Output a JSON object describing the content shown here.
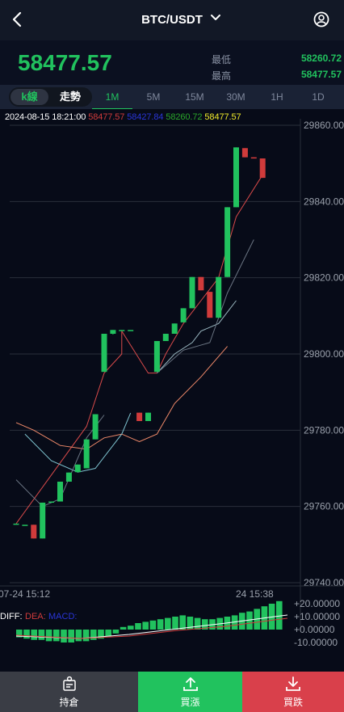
{
  "header": {
    "title": "BTC/USDT"
  },
  "price": {
    "current": "58477.57",
    "low_label": "最低",
    "low_value": "58260.72",
    "high_label": "最高",
    "high_value": "58477.57"
  },
  "tabs": {
    "kline": "k線",
    "trend": "走勢",
    "timeframes": [
      "1M",
      "5M",
      "15M",
      "30M",
      "1H",
      "1D"
    ],
    "active": "1M"
  },
  "ohlc": {
    "datetime": "2024-08-15 18:21:00",
    "v1": "58477.57",
    "v2": "58427.84",
    "v3": "58260.72",
    "v4": "58477.57",
    "c1": "#d03b3b",
    "c2": "#2a36d8",
    "c3": "#2aa62a",
    "c4": "#f2ec2a"
  },
  "colors": {
    "up": "#21c25e",
    "down": "#d03b3b",
    "footer_dark": "#3a3d45",
    "buy": "#21c25e",
    "sell": "#d9404b"
  },
  "chart_data": {
    "type": "candlestick",
    "y_ticks": [
      "29860.00",
      "29840.00",
      "29820.00",
      "29800.00",
      "29780.00",
      "29760.00",
      "29740.00"
    ],
    "x_labels": [
      "07-24 15:12",
      "24 15:38"
    ],
    "candles": [
      {
        "o": 29755.5,
        "h": 29755.5,
        "c": 29755.5,
        "l": 29755.5
      },
      {
        "o": 29755.2,
        "h": 29755.2,
        "c": 29755.2,
        "l": 29755.2
      },
      {
        "o": 29755.2,
        "h": 29755.2,
        "c": 29751.6,
        "l": 29751.6
      },
      {
        "o": 29751.6,
        "h": 29761.0,
        "c": 29761.0,
        "l": 29751.6
      },
      {
        "o": 29761.1,
        "h": 29761.3,
        "c": 29761.3,
        "l": 29761.0
      },
      {
        "o": 29761.3,
        "h": 29766.5,
        "c": 29766.5,
        "l": 29761.3
      },
      {
        "o": 29766.5,
        "h": 29768.9,
        "c": 29768.9,
        "l": 29766.5
      },
      {
        "o": 29769.0,
        "h": 29771.0,
        "c": 29771.0,
        "l": 29769.0
      },
      {
        "o": 29770.0,
        "h": 29777.6,
        "c": 29777.6,
        "l": 29770.0
      },
      {
        "o": 29777.6,
        "h": 29784.2,
        "c": 29784.2,
        "l": 29777.6
      },
      {
        "o": 29795.3,
        "h": 29805.3,
        "c": 29805.3,
        "l": 29795.3
      },
      {
        "o": 29805.3,
        "h": 29806.3,
        "c": 29806.3,
        "l": 29805.1
      },
      {
        "o": 29806.3,
        "h": 29806.3,
        "c": 29806.3,
        "l": 29806.3
      },
      {
        "o": 29806.3,
        "h": 29806.3,
        "c": 29806.3,
        "l": 29806.3
      },
      {
        "o": 29784.6,
        "h": 29784.6,
        "c": 29782.4,
        "l": 29782.4
      },
      {
        "o": 29782.4,
        "h": 29784.6,
        "c": 29784.6,
        "l": 29782.4
      },
      {
        "o": 29795.3,
        "h": 29803.4,
        "c": 29803.4,
        "l": 29795.3
      },
      {
        "o": 29803.4,
        "h": 29805.3,
        "c": 29805.3,
        "l": 29803.4
      },
      {
        "o": 29805.3,
        "h": 29808.0,
        "c": 29808.0,
        "l": 29805.3
      },
      {
        "o": 29808.3,
        "h": 29812.0,
        "c": 29812.0,
        "l": 29808.3
      },
      {
        "o": 29812.0,
        "h": 29820.2,
        "c": 29820.2,
        "l": 29812.0
      },
      {
        "o": 29820.2,
        "h": 29820.2,
        "c": 29816.7,
        "l": 29816.7
      },
      {
        "o": 29816.3,
        "h": 29816.3,
        "c": 29809.5,
        "l": 29809.5
      },
      {
        "o": 29809.5,
        "h": 29820.2,
        "c": 29820.2,
        "l": 29809.5
      },
      {
        "o": 29820.2,
        "h": 29838.5,
        "c": 29838.5,
        "l": 29820.2
      },
      {
        "o": 29838.5,
        "h": 29854.2,
        "c": 29854.2,
        "l": 29838.5
      },
      {
        "o": 29854.0,
        "h": 29854.0,
        "c": 29851.6,
        "l": 29851.6
      },
      {
        "o": 29851.6,
        "h": 29851.6,
        "c": 29851.3,
        "l": 29851.3
      },
      {
        "o": 29851.3,
        "h": 29851.3,
        "c": 29846.2,
        "l": 29846.2
      }
    ],
    "ma_lines": [
      {
        "color": "#d84a4a",
        "points": [
          [
            29755.5,
            0
          ],
          [
            29781,
            8
          ],
          [
            29795,
            10
          ],
          [
            29800,
            12
          ],
          [
            29806,
            12
          ],
          [
            29795,
            15
          ],
          [
            29795,
            16
          ],
          [
            29800,
            17
          ],
          [
            29808,
            19
          ],
          [
            29814,
            21
          ],
          [
            29820,
            23
          ],
          [
            29836,
            25
          ],
          [
            29847,
            28
          ]
        ]
      },
      {
        "color": "#f08a6a",
        "points": [
          [
            29782,
            0
          ],
          [
            29780,
            2
          ],
          [
            29776,
            5
          ],
          [
            29775,
            8
          ],
          [
            29778,
            10
          ],
          [
            29779,
            12
          ],
          [
            29777,
            14
          ],
          [
            29779,
            16
          ],
          [
            29787,
            18
          ],
          [
            29794,
            21
          ],
          [
            29802,
            24
          ]
        ]
      },
      {
        "color": "#7ec3cf",
        "points": [
          [
            29779,
            1
          ],
          [
            29772,
            4
          ],
          [
            29769,
            7
          ],
          [
            29770,
            9
          ],
          [
            29779,
            12
          ],
          [
            29784.5,
            13
          ]
        ]
      },
      {
        "color": "#9ab7c0",
        "points": [
          [
            29795,
            16
          ],
          [
            29800,
            18
          ],
          [
            29803,
            20
          ],
          [
            29806,
            21
          ],
          [
            29808,
            23
          ],
          [
            29814,
            25
          ]
        ]
      },
      {
        "color": "#6a7482",
        "points": [
          [
            29767,
            0
          ],
          [
            29760,
            3
          ],
          [
            29762,
            5
          ],
          [
            29778,
            8
          ],
          [
            29784,
            10
          ]
        ]
      },
      {
        "color": "#6a7482",
        "points": [
          [
            29795,
            16
          ],
          [
            29801,
            19
          ],
          [
            29803,
            22
          ],
          [
            29816,
            24
          ],
          [
            29830,
            27
          ]
        ]
      }
    ],
    "macd": {
      "labels": [
        "DIFF:",
        "DEA:",
        "MACD:"
      ],
      "label_colors": [
        "#ffffff",
        "#d03b3b",
        "#2a36d8"
      ],
      "y_ticks": [
        "+20.00000",
        "+10.00000",
        "+0.00000",
        "-10.00000"
      ],
      "bars": [
        -6,
        -7,
        -8,
        -8,
        -9,
        -9,
        -10,
        -10,
        -9,
        -9,
        -8,
        -7,
        -5,
        -3,
        2,
        3,
        5,
        6,
        7,
        8,
        9,
        10,
        11,
        10,
        9,
        8,
        8,
        9,
        10,
        11,
        13,
        14,
        16,
        18,
        20,
        22
      ]
    }
  },
  "footer": {
    "holdings": "持倉",
    "buy": "買漲",
    "sell": "買跌"
  }
}
